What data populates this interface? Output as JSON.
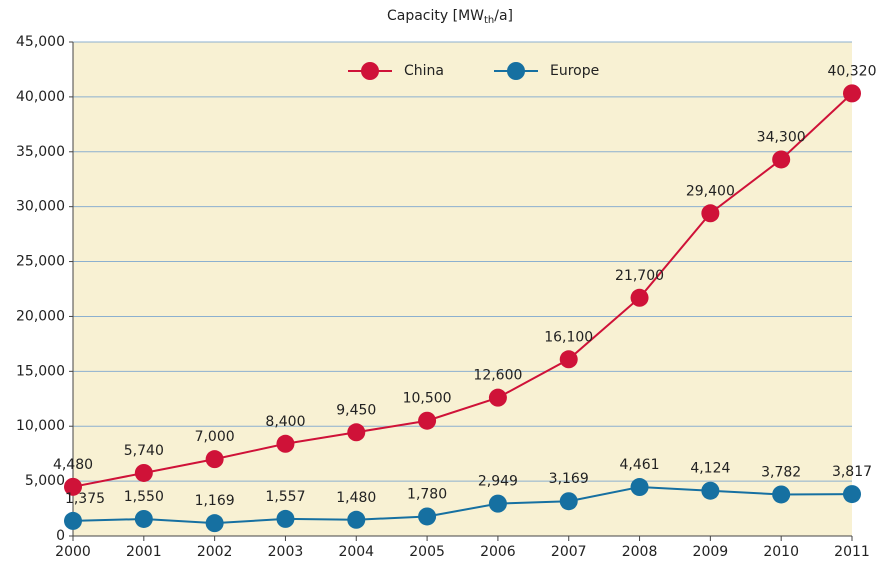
{
  "chart_data": {
    "type": "line",
    "title": [
      "Capacity [MW",
      "th",
      "/a]"
    ],
    "x": [
      2000,
      2001,
      2002,
      2003,
      2004,
      2005,
      2006,
      2007,
      2008,
      2009,
      2010,
      2011
    ],
    "xlim": [
      2000,
      2011
    ],
    "xticks": [
      2000,
      2001,
      2002,
      2003,
      2004,
      2005,
      2006,
      2007,
      2008,
      2009,
      2010,
      2011
    ],
    "ylim": [
      0,
      45000
    ],
    "yticks": [
      0,
      {
        "value": 5000,
        "label": "5,000"
      },
      {
        "value": 10000,
        "label": "10,000"
      },
      {
        "value": 15000,
        "label": "15,000"
      },
      {
        "value": 20000,
        "label": "20,000"
      },
      {
        "value": 25000,
        "label": "25,000"
      },
      {
        "value": 30000,
        "label": "30,000"
      },
      {
        "value": 35000,
        "label": "35,000"
      },
      {
        "value": 40000,
        "label": "40,000"
      },
      {
        "value": 45000,
        "label": "45,000"
      }
    ],
    "grid": true,
    "legend": "top",
    "series": [
      {
        "name": "China",
        "color": "#cf1238",
        "values": [
          4480,
          5740,
          7000,
          8400,
          9450,
          10500,
          12600,
          16100,
          21700,
          29400,
          34300,
          40320
        ],
        "value_labels": [
          "4,480",
          "5,740",
          "7,000",
          "8,400",
          "9,450",
          "10,500",
          "12,600",
          "16,100",
          "21,700",
          "29,400",
          "34,300",
          "40,320"
        ]
      },
      {
        "name": "Europe",
        "color": "#1670a1",
        "values": [
          1375,
          1550,
          1169,
          1557,
          1480,
          1780,
          2949,
          3169,
          4461,
          4124,
          3782,
          3817
        ],
        "value_labels": [
          "1,375",
          "1,550",
          "1,169",
          "1,557",
          "1,480",
          "1,780",
          "2,949",
          "3,169",
          "4,461",
          "4,124",
          "3,782",
          "3,817"
        ]
      }
    ]
  }
}
